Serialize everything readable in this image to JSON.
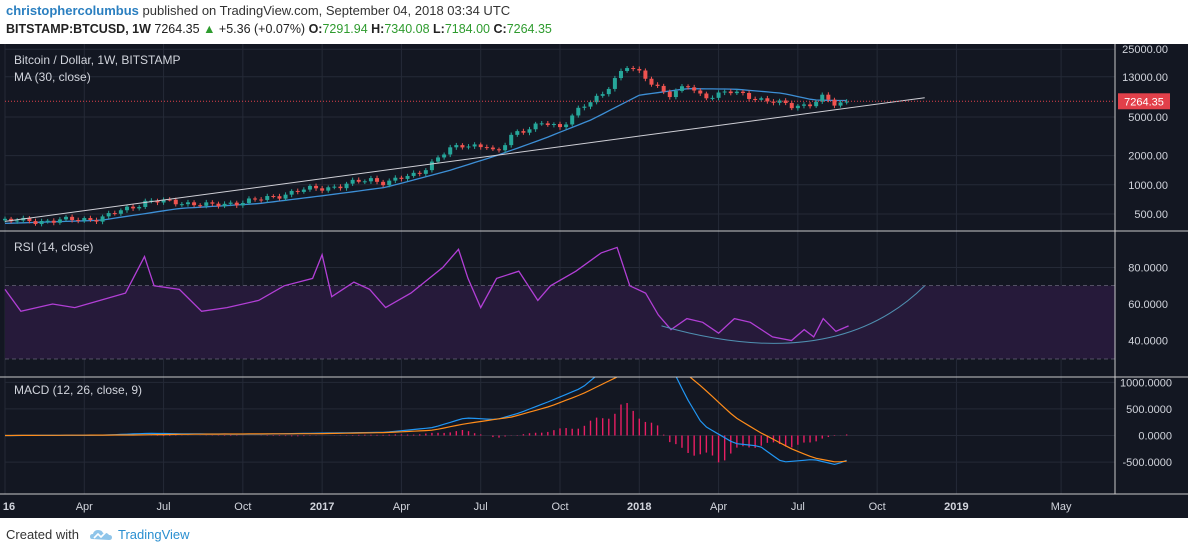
{
  "header": {
    "author": "christophercolumbus",
    "published_text": "published on TradingView.com, September 04, 2018 03:34 UTC",
    "symbol": "BITSTAMP:BTCUSD, 1W",
    "last": "7264.35",
    "change_arrow": "▲",
    "change": "+5.36 (+0.07%)",
    "o_label": "O:",
    "o_value": "7291.94",
    "h_label": "H:",
    "h_value": "7340.08",
    "l_label": "L:",
    "l_value": "7184.00",
    "c_label": "C:",
    "c_value": "7264.35"
  },
  "footer": {
    "created_with": "Created with",
    "brand": "TradingView"
  },
  "colors": {
    "bg": "#131722",
    "up": "#26a69a",
    "down": "#ef5350",
    "ma": "#3d8fd6",
    "rsi": "#b23fd6",
    "macd": "#2196f3",
    "signal": "#ff8c1a",
    "hist": "#e91e63"
  },
  "chart_data": [
    {
      "type": "candlestick",
      "title": "Bitcoin / Dollar, 1W, BITSTAMP",
      "indicator_label": "MA (30, close)",
      "price_label": "7264.35",
      "y_scale": "log",
      "ylim": [
        350,
        27000
      ],
      "y_ticks": [
        "25000.00",
        "13000.00",
        "5000.00",
        "2000.00",
        "1000.00",
        "500.00"
      ],
      "y_tick_values": [
        25000,
        13000,
        5000,
        2000,
        1000,
        500
      ],
      "x_ticks": [
        "16",
        "Apr",
        "Jul",
        "Oct",
        "2017",
        "Apr",
        "Jul",
        "Oct",
        "2018",
        "Apr",
        "Jul",
        "Oct",
        "2019",
        "May"
      ],
      "x_tick_dates": [
        2016.0,
        2016.25,
        2016.5,
        2016.75,
        2017.0,
        2017.25,
        2017.5,
        2017.75,
        2018.0,
        2018.25,
        2018.5,
        2018.75,
        2019.0,
        2019.33
      ],
      "x_range": [
        2016.0,
        2019.5
      ],
      "price_keypoints": [
        [
          2016.0,
          430
        ],
        [
          2016.1,
          420
        ],
        [
          2016.3,
          450
        ],
        [
          2016.45,
          680
        ],
        [
          2016.55,
          660
        ],
        [
          2016.65,
          610
        ],
        [
          2016.8,
          700
        ],
        [
          2016.95,
          900
        ],
        [
          2017.05,
          960
        ],
        [
          2017.15,
          1150
        ],
        [
          2017.2,
          1050
        ],
        [
          2017.3,
          1300
        ],
        [
          2017.4,
          2300
        ],
        [
          2017.45,
          2600
        ],
        [
          2017.52,
          2500
        ],
        [
          2017.55,
          2000
        ],
        [
          2017.6,
          3400
        ],
        [
          2017.7,
          4300
        ],
        [
          2017.75,
          3900
        ],
        [
          2017.8,
          5800
        ],
        [
          2017.88,
          8200
        ],
        [
          2017.93,
          13500
        ],
        [
          2017.96,
          17000
        ],
        [
          2018.0,
          14000
        ],
        [
          2018.04,
          11000
        ],
        [
          2018.1,
          8500
        ],
        [
          2018.15,
          10500
        ],
        [
          2018.2,
          8000
        ],
        [
          2018.28,
          9200
        ],
        [
          2018.35,
          8000
        ],
        [
          2018.42,
          7300
        ],
        [
          2018.48,
          6400
        ],
        [
          2018.53,
          6700
        ],
        [
          2018.58,
          8100
        ],
        [
          2018.62,
          6500
        ],
        [
          2018.66,
          7264
        ]
      ],
      "ma30_keypoints": [
        [
          2016.0,
          400
        ],
        [
          2016.3,
          430
        ],
        [
          2016.55,
          570
        ],
        [
          2016.8,
          640
        ],
        [
          2017.0,
          770
        ],
        [
          2017.2,
          940
        ],
        [
          2017.4,
          1400
        ],
        [
          2017.55,
          2000
        ],
        [
          2017.7,
          3000
        ],
        [
          2017.85,
          4700
        ],
        [
          2018.0,
          8400
        ],
        [
          2018.15,
          9800
        ],
        [
          2018.3,
          9700
        ],
        [
          2018.45,
          8800
        ],
        [
          2018.55,
          7500
        ],
        [
          2018.62,
          7400
        ],
        [
          2018.66,
          7400
        ]
      ],
      "trendline": [
        [
          2016.0,
          420
        ],
        [
          2018.9,
          7900
        ]
      ]
    },
    {
      "type": "line",
      "title": "RSI (14, close)",
      "ylim": [
        20,
        100
      ],
      "y_ticks": [
        "80.0000",
        "60.0000",
        "40.0000"
      ],
      "y_tick_values": [
        80,
        60,
        40
      ],
      "bands": [
        30,
        70
      ],
      "rsi_keypoints": [
        [
          2016.0,
          68
        ],
        [
          2016.05,
          56
        ],
        [
          2016.15,
          60
        ],
        [
          2016.22,
          58
        ],
        [
          2016.3,
          62
        ],
        [
          2016.38,
          66
        ],
        [
          2016.44,
          86
        ],
        [
          2016.47,
          70
        ],
        [
          2016.55,
          68
        ],
        [
          2016.62,
          56
        ],
        [
          2016.7,
          58
        ],
        [
          2016.8,
          62
        ],
        [
          2016.88,
          70
        ],
        [
          2016.97,
          74
        ],
        [
          2017.0,
          87
        ],
        [
          2017.03,
          64
        ],
        [
          2017.1,
          72
        ],
        [
          2017.15,
          68
        ],
        [
          2017.2,
          58
        ],
        [
          2017.28,
          66
        ],
        [
          2017.38,
          80
        ],
        [
          2017.43,
          90
        ],
        [
          2017.46,
          74
        ],
        [
          2017.5,
          58
        ],
        [
          2017.55,
          74
        ],
        [
          2017.62,
          78
        ],
        [
          2017.68,
          62
        ],
        [
          2017.72,
          70
        ],
        [
          2017.8,
          78
        ],
        [
          2017.88,
          88
        ],
        [
          2017.93,
          91
        ],
        [
          2017.97,
          70
        ],
        [
          2018.02,
          66
        ],
        [
          2018.06,
          54
        ],
        [
          2018.1,
          46
        ],
        [
          2018.15,
          52
        ],
        [
          2018.2,
          50
        ],
        [
          2018.25,
          44
        ],
        [
          2018.3,
          52
        ],
        [
          2018.35,
          50
        ],
        [
          2018.42,
          42
        ],
        [
          2018.48,
          40
        ],
        [
          2018.52,
          46
        ],
        [
          2018.55,
          42
        ],
        [
          2018.58,
          52
        ],
        [
          2018.62,
          45
        ],
        [
          2018.66,
          48
        ]
      ],
      "projection_curve": [
        [
          2018.07,
          48
        ],
        [
          2018.55,
          40
        ],
        [
          2018.9,
          70
        ]
      ]
    },
    {
      "type": "line+bar",
      "title": "MACD (12, 26, close, 9)",
      "ylim": [
        -1100,
        1100
      ],
      "y_ticks": [
        "1000.0000",
        "500.0000",
        "0.0000",
        "-500.0000"
      ],
      "y_tick_values": [
        1000,
        500,
        0,
        -500
      ],
      "macd_keypoints": [
        [
          2016.0,
          0
        ],
        [
          2016.3,
          5
        ],
        [
          2016.45,
          40
        ],
        [
          2016.6,
          30
        ],
        [
          2016.8,
          25
        ],
        [
          2017.0,
          45
        ],
        [
          2017.2,
          60
        ],
        [
          2017.35,
          150
        ],
        [
          2017.45,
          330
        ],
        [
          2017.55,
          300
        ],
        [
          2017.62,
          420
        ],
        [
          2017.72,
          650
        ],
        [
          2017.82,
          900
        ],
        [
          2017.92,
          1400
        ],
        [
          2018.0,
          1600
        ],
        [
          2018.1,
          1300
        ],
        [
          2018.15,
          700
        ],
        [
          2018.2,
          200
        ],
        [
          2018.3,
          -150
        ],
        [
          2018.38,
          -200
        ],
        [
          2018.45,
          -500
        ],
        [
          2018.55,
          -450
        ],
        [
          2018.62,
          -550
        ],
        [
          2018.66,
          -450
        ]
      ],
      "signal_keypoints": [
        [
          2016.0,
          0
        ],
        [
          2016.4,
          10
        ],
        [
          2016.6,
          25
        ],
        [
          2017.0,
          35
        ],
        [
          2017.2,
          55
        ],
        [
          2017.35,
          100
        ],
        [
          2017.45,
          220
        ],
        [
          2017.6,
          350
        ],
        [
          2017.72,
          550
        ],
        [
          2017.82,
          780
        ],
        [
          2017.93,
          1100
        ],
        [
          2018.05,
          1500
        ],
        [
          2018.12,
          1300
        ],
        [
          2018.2,
          900
        ],
        [
          2018.3,
          350
        ],
        [
          2018.38,
          60
        ],
        [
          2018.48,
          -250
        ],
        [
          2018.55,
          -420
        ],
        [
          2018.62,
          -500
        ],
        [
          2018.66,
          -480
        ]
      ],
      "hist_keypoints": [
        [
          2016.0,
          0
        ],
        [
          2016.35,
          15
        ],
        [
          2016.5,
          -10
        ],
        [
          2016.7,
          10
        ],
        [
          2016.9,
          -15
        ],
        [
          2017.1,
          10
        ],
        [
          2017.3,
          20
        ],
        [
          2017.45,
          90
        ],
        [
          2017.55,
          -40
        ],
        [
          2017.7,
          70
        ],
        [
          2017.82,
          170
        ],
        [
          2017.9,
          380
        ],
        [
          2017.95,
          550
        ],
        [
          2018.0,
          380
        ],
        [
          2018.06,
          150
        ],
        [
          2018.1,
          -170
        ],
        [
          2018.2,
          -380
        ],
        [
          2018.25,
          -460
        ],
        [
          2018.3,
          -280
        ],
        [
          2018.4,
          -150
        ],
        [
          2018.48,
          -190
        ],
        [
          2018.54,
          -150
        ],
        [
          2018.58,
          -40
        ],
        [
          2018.66,
          25
        ]
      ]
    }
  ]
}
